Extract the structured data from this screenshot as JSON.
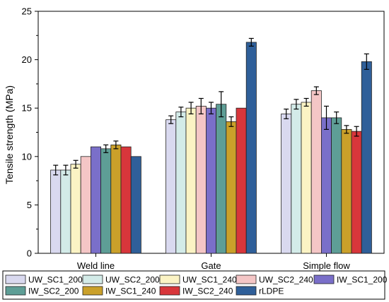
{
  "chart_data": {
    "type": "bar",
    "title": "",
    "xlabel": "",
    "ylabel": "Tensile strength (MPa)",
    "ylim": [
      0,
      25
    ],
    "yticks": [
      0,
      5,
      10,
      15,
      20,
      25
    ],
    "grid": false,
    "legend_position": "bottom",
    "categories": [
      "Weld line",
      "Gate",
      "Simple flow"
    ],
    "series": [
      {
        "name": "UW_SC1_200",
        "color": "#d9d9ef",
        "values": [
          8.6,
          13.8,
          14.4
        ],
        "errors": [
          0.5,
          0.4,
          0.5
        ]
      },
      {
        "name": "UW_SC2_200",
        "color": "#d3ebe8",
        "values": [
          8.6,
          14.6,
          15.4
        ],
        "errors": [
          0.5,
          0.5,
          0.5
        ]
      },
      {
        "name": "UW_SC1_240",
        "color": "#fbf3c4",
        "values": [
          9.2,
          15.0,
          15.6
        ],
        "errors": [
          0.4,
          0.6,
          0.4
        ]
      },
      {
        "name": "UW_SC2_240",
        "color": "#f4c6c6",
        "values": [
          10.0,
          15.2,
          16.8
        ],
        "errors": [
          0.0,
          0.8,
          0.4
        ]
      },
      {
        "name": "IW_SC1_200",
        "color": "#7a6fc9",
        "values": [
          11.0,
          15.0,
          14.0
        ],
        "errors": [
          0.0,
          0.6,
          1.2
        ]
      },
      {
        "name": "IW_SC2_200",
        "color": "#5e9e96",
        "values": [
          10.8,
          15.4,
          14.0
        ],
        "errors": [
          0.4,
          1.3,
          0.6
        ]
      },
      {
        "name": "IW_SC1_240",
        "color": "#caa02a",
        "values": [
          11.2,
          13.6,
          12.8
        ],
        "errors": [
          0.4,
          0.5,
          0.4
        ]
      },
      {
        "name": "IW_SC2_240",
        "color": "#d8363b",
        "values": [
          11.0,
          15.0,
          12.6
        ],
        "errors": [
          0.0,
          0.0,
          0.5
        ]
      },
      {
        "name": "rLDPE",
        "color": "#2f5f99",
        "values": [
          10.0,
          21.8,
          19.8
        ],
        "errors": [
          0.0,
          0.4,
          0.8
        ]
      }
    ]
  }
}
